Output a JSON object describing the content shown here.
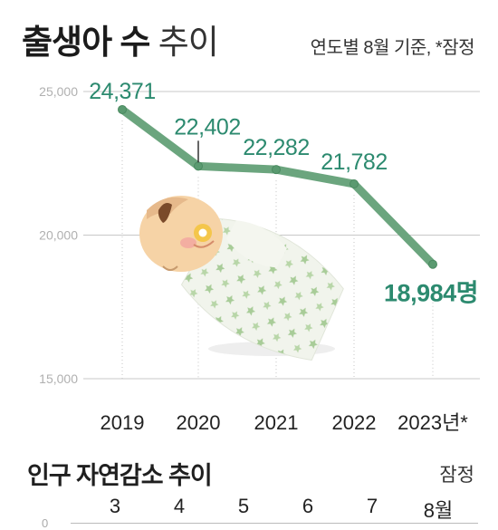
{
  "header": {
    "title_bold": "출생아 수",
    "title_light": "추이",
    "subtitle": "연도별 8월 기준, *잠정"
  },
  "colors": {
    "line": "#6ba57e",
    "label": "#2c8a6f",
    "marker": "#5a9a70",
    "grid": "#c8c8c8"
  },
  "chart_data": {
    "type": "line",
    "categories": [
      "2019",
      "2020",
      "2021",
      "2022",
      "2023년*"
    ],
    "values": [
      24371,
      22402,
      22282,
      21782,
      18984
    ],
    "data_labels": [
      "24,371",
      "22,402",
      "22,282",
      "21,782",
      "18,984명"
    ],
    "yticks": [
      "25,000",
      "20,000",
      "15,000"
    ],
    "ytick_values": [
      25000,
      20000,
      15000
    ],
    "ylim": [
      15000,
      25000
    ],
    "grid": true
  },
  "section2": {
    "title": "인구 자연감소 추이",
    "note": "잠정",
    "months": [
      "3",
      "4",
      "5",
      "6",
      "7",
      "8월"
    ],
    "zero_label": "0"
  }
}
